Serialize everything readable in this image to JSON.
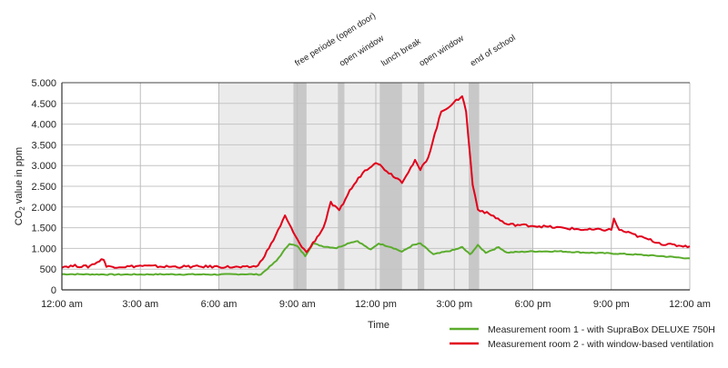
{
  "chart_data": {
    "type": "line",
    "xlabel": "Time",
    "ylabel_main": "CO",
    "ylabel_sub": "2",
    "ylabel_rest": " value in ppm",
    "xlim": [
      0,
      24
    ],
    "ylim": [
      0,
      5000
    ],
    "grid": true,
    "legend_placement": "bottom-right",
    "x_ticks": [
      {
        "value": 0,
        "label": "12:00 am"
      },
      {
        "value": 3,
        "label": "3:00 am"
      },
      {
        "value": 6,
        "label": "6:00 am"
      },
      {
        "value": 9,
        "label": "9:00 am"
      },
      {
        "value": 12,
        "label": "12:00 pm"
      },
      {
        "value": 15,
        "label": "3:00 pm"
      },
      {
        "value": 18,
        "label": "6:00 pm"
      },
      {
        "value": 21,
        "label": "9:00 pm"
      },
      {
        "value": 24,
        "label": "12:00 am"
      }
    ],
    "y_ticks": [
      {
        "value": 0,
        "label": "0"
      },
      {
        "value": 500,
        "label": "500"
      },
      {
        "value": 1000,
        "label": "1.000"
      },
      {
        "value": 1500,
        "label": "1.500"
      },
      {
        "value": 2000,
        "label": "2.000"
      },
      {
        "value": 2500,
        "label": "2.500"
      },
      {
        "value": 3000,
        "label": "3.000"
      },
      {
        "value": 3500,
        "label": "3.500"
      },
      {
        "value": 4000,
        "label": "4.000"
      },
      {
        "value": 4500,
        "label": "4.500"
      },
      {
        "value": 5000,
        "label": "5.000"
      }
    ],
    "school_hours": {
      "start": 6,
      "end": 18,
      "color": "#ebebeb"
    },
    "events": [
      {
        "label": "free periode (open door)",
        "start": 8.85,
        "end": 9.35
      },
      {
        "label": "open window",
        "start": 10.55,
        "end": 10.8
      },
      {
        "label": "lunch break",
        "start": 12.15,
        "end": 13.0
      },
      {
        "label": "open window",
        "start": 13.6,
        "end": 13.85
      },
      {
        "label": "end of school",
        "start": 15.55,
        "end": 15.95
      }
    ],
    "event_color": "#c8c8c8",
    "series": [
      {
        "name": "Measurement room 1 - with SupraBox DELUXE 750H",
        "color": "#5aac2c",
        "x": [
          0,
          2,
          4,
          6,
          7,
          7.6,
          8.2,
          8.7,
          9.0,
          9.3,
          9.6,
          10.0,
          10.5,
          11.0,
          11.3,
          11.8,
          12.1,
          12.6,
          13.0,
          13.4,
          13.7,
          14.2,
          15.0,
          15.3,
          15.6,
          15.9,
          16.2,
          16.7,
          17.0,
          18,
          19,
          20,
          21,
          22,
          23,
          24
        ],
        "y": [
          380,
          370,
          375,
          370,
          380,
          370,
          700,
          1120,
          1050,
          820,
          1120,
          1050,
          1010,
          1140,
          1180,
          965,
          1120,
          1030,
          920,
          1075,
          1120,
          855,
          965,
          1030,
          855,
          1075,
          900,
          1030,
          900,
          930,
          930,
          900,
          880,
          850,
          810,
          760
        ]
      },
      {
        "name": "Measurement room 2 - with window-based ventilation",
        "color": "#e2001a",
        "x": [
          0,
          0.5,
          1,
          1.6,
          1.7,
          2.5,
          3,
          4,
          5,
          6,
          7,
          7.5,
          8.0,
          8.53,
          9.0,
          9.35,
          10.0,
          10.28,
          10.6,
          11.0,
          11.5,
          12.0,
          12.5,
          13.0,
          13.5,
          13.7,
          14.0,
          14.5,
          15.0,
          15.3,
          15.45,
          15.7,
          15.9,
          16.5,
          17.0,
          18,
          19,
          20,
          21,
          21.1,
          21.3,
          22,
          23,
          24
        ],
        "y": [
          560,
          580,
          560,
          750,
          560,
          560,
          580,
          560,
          560,
          560,
          540,
          580,
          1100,
          1780,
          1200,
          900,
          1500,
          2100,
          1900,
          2390,
          2830,
          3090,
          2830,
          2610,
          3110,
          2890,
          3200,
          4300,
          4520,
          4690,
          4300,
          2540,
          1950,
          1780,
          1580,
          1550,
          1500,
          1450,
          1450,
          1700,
          1450,
          1300,
          1100,
          1050
        ]
      }
    ]
  }
}
